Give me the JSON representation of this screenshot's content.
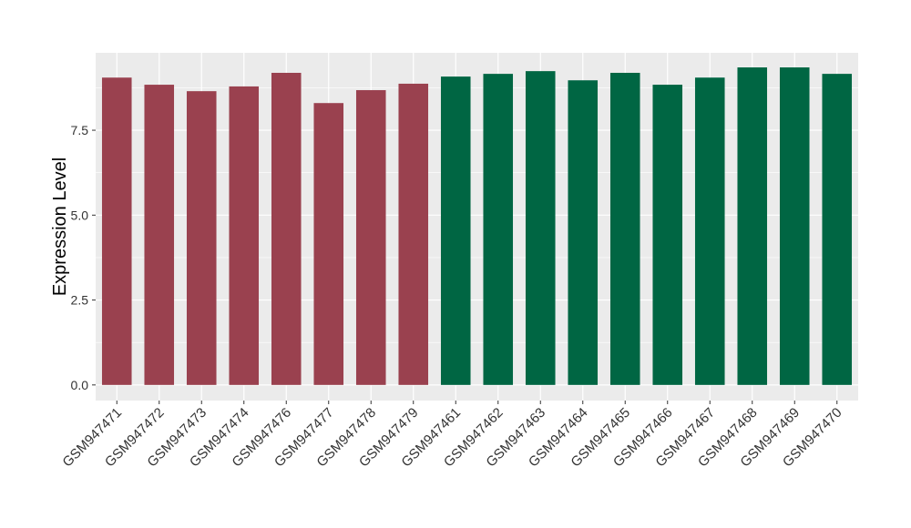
{
  "chart_data": {
    "type": "bar",
    "y_label": "Expression Level",
    "categories": [
      "GSM947471",
      "GSM947472",
      "GSM947473",
      "GSM947474",
      "GSM947476",
      "GSM947477",
      "GSM947478",
      "GSM947479",
      "GSM947461",
      "GSM947462",
      "GSM947463",
      "GSM947464",
      "GSM947465",
      "GSM947466",
      "GSM947467",
      "GSM947468",
      "GSM947469",
      "GSM947470"
    ],
    "values": [
      9.05,
      8.84,
      8.65,
      8.79,
      9.19,
      8.3,
      8.68,
      8.87,
      9.08,
      9.16,
      9.24,
      8.97,
      9.19,
      8.84,
      9.05,
      9.35,
      9.35,
      9.16
    ],
    "colors": [
      "#9a414f",
      "#9a414f",
      "#9a414f",
      "#9a414f",
      "#9a414f",
      "#9a414f",
      "#9a414f",
      "#9a414f",
      "#006643",
      "#006643",
      "#006643",
      "#006643",
      "#006643",
      "#006643",
      "#006643",
      "#006643",
      "#006643",
      "#006643"
    ],
    "ylim": [
      -0.46,
      9.78
    ],
    "yticks": [
      {
        "value": 0,
        "label": "0.0"
      },
      {
        "value": 2.5,
        "label": "2.5"
      },
      {
        "value": 5,
        "label": "5.0"
      },
      {
        "value": 7.5,
        "label": "7.5"
      }
    ],
    "grid": true
  }
}
